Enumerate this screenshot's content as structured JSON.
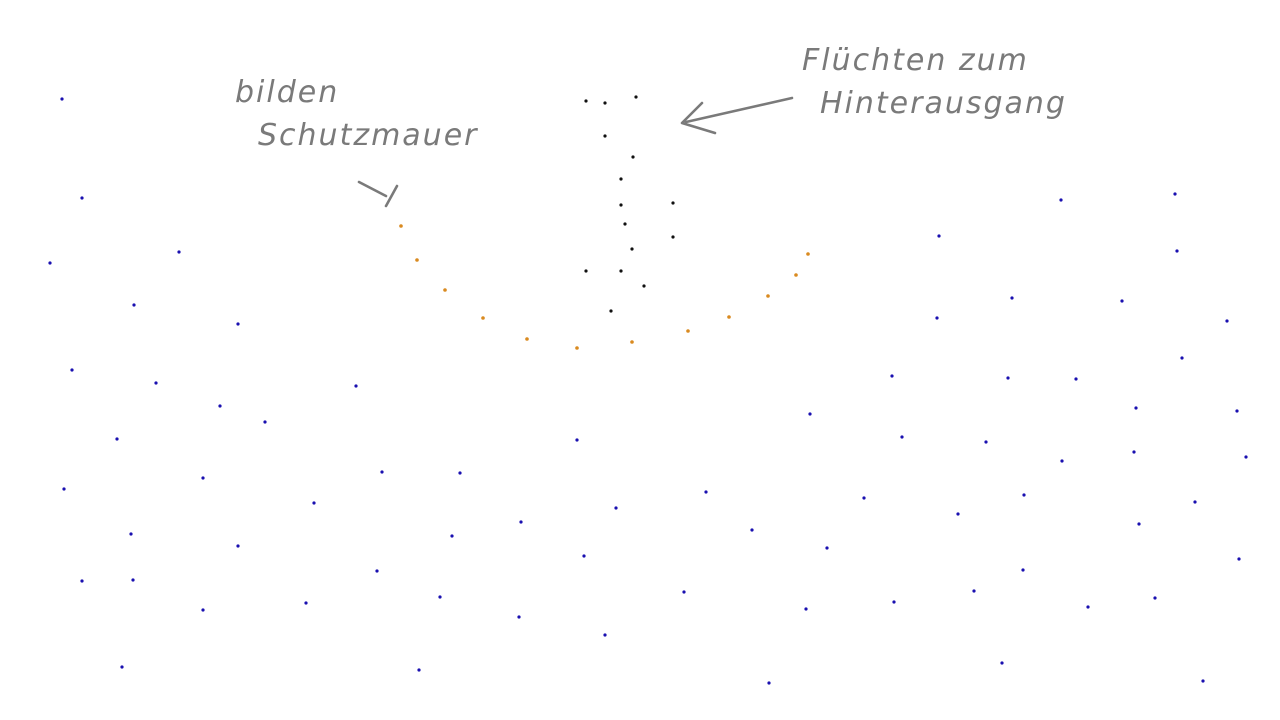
{
  "annotations": {
    "left_line1": "bilden",
    "left_line2": "Schutzmauer",
    "right_line1": "Flüchten zum",
    "right_line2": "Hinterausgang"
  },
  "colors": {
    "crowd": "#1a10b0",
    "wall": "#d98a20",
    "fleeing": "#111111",
    "ink": "#7a7a7a",
    "background": "#ffffff"
  }
}
